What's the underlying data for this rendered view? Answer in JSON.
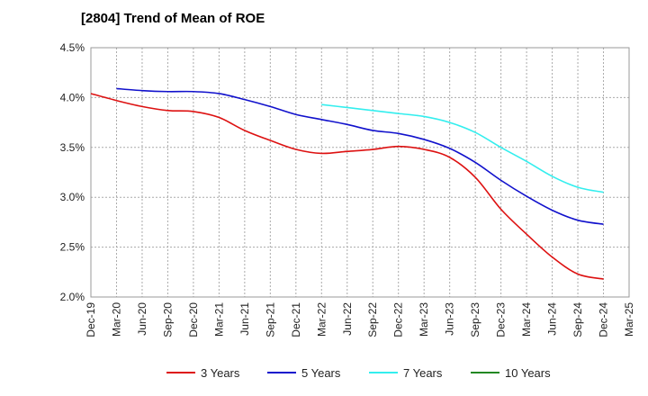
{
  "chart_data": {
    "type": "line",
    "title": "[2804]  Trend of Mean of ROE",
    "xlabel": "",
    "ylabel": "",
    "ylim": [
      2.0,
      4.5
    ],
    "yticks": [
      "2.0%",
      "2.5%",
      "3.0%",
      "3.5%",
      "4.0%",
      "4.5%"
    ],
    "ytick_values": [
      2.0,
      2.5,
      3.0,
      3.5,
      4.0,
      4.5
    ],
    "categories": [
      "Dec-19",
      "Mar-20",
      "Jun-20",
      "Sep-20",
      "Dec-20",
      "Mar-21",
      "Jun-21",
      "Sep-21",
      "Dec-21",
      "Mar-22",
      "Jun-22",
      "Sep-22",
      "Dec-22",
      "Mar-23",
      "Jun-23",
      "Sep-23",
      "Dec-23",
      "Mar-24",
      "Jun-24",
      "Sep-24",
      "Dec-24",
      "Mar-25"
    ],
    "grid": true,
    "legend_position": "bottom",
    "series": [
      {
        "name": "3 Years",
        "color": "#dd1111",
        "values": [
          4.04,
          3.97,
          3.91,
          3.87,
          3.86,
          3.8,
          3.67,
          3.57,
          3.48,
          3.44,
          3.46,
          3.48,
          3.51,
          3.48,
          3.4,
          3.2,
          2.88,
          2.63,
          2.4,
          2.23,
          2.18,
          null
        ]
      },
      {
        "name": "5 Years",
        "color": "#1111cc",
        "values": [
          null,
          4.09,
          4.07,
          4.06,
          4.06,
          4.04,
          3.98,
          3.91,
          3.83,
          3.78,
          3.73,
          3.67,
          3.64,
          3.58,
          3.49,
          3.35,
          3.17,
          3.01,
          2.87,
          2.77,
          2.73,
          null
        ]
      },
      {
        "name": "7 Years",
        "color": "#33eeee",
        "values": [
          null,
          null,
          null,
          null,
          null,
          null,
          null,
          null,
          null,
          3.93,
          3.9,
          3.87,
          3.84,
          3.81,
          3.75,
          3.65,
          3.5,
          3.36,
          3.21,
          3.1,
          3.05,
          null
        ]
      },
      {
        "name": "10 Years",
        "color": "#228822",
        "values": [
          null,
          null,
          null,
          null,
          null,
          null,
          null,
          null,
          null,
          null,
          null,
          null,
          null,
          null,
          null,
          null,
          null,
          null,
          null,
          null,
          null,
          null
        ]
      }
    ]
  }
}
